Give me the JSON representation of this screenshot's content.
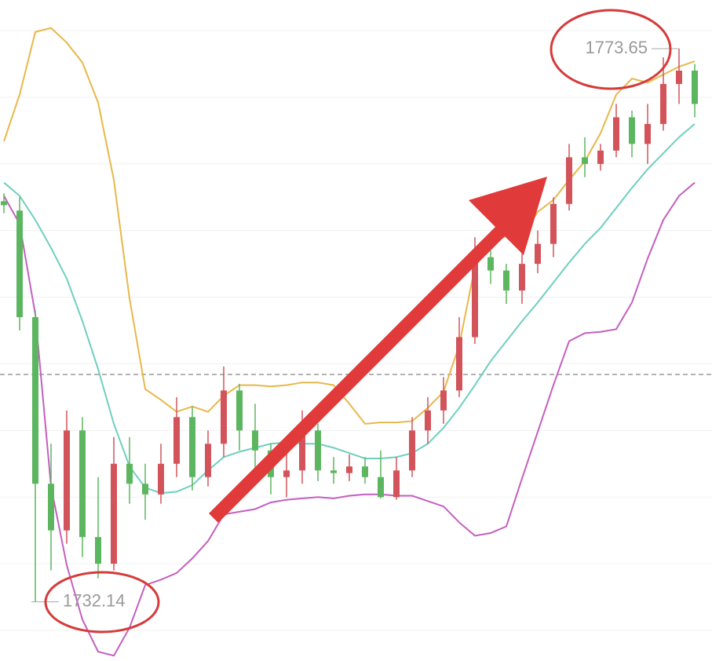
{
  "chart_data": {
    "type": "candlestick",
    "ylim": [
      1727.7,
      1777.3
    ],
    "gridlines": [
      1775,
      1770,
      1765,
      1760,
      1755,
      1750,
      1745,
      1740,
      1735,
      1730
    ],
    "reference_line": 1749.2,
    "up_color": "#d2545a",
    "down_color": "#5cb660",
    "open": [
      1762.2,
      1761.5,
      1753.5,
      1741,
      1737.5,
      1745,
      1737,
      1735,
      1742.5,
      1741,
      1740.2,
      1742.5,
      1746,
      1741.5,
      1744,
      1748,
      1745,
      1743.5,
      1741.5,
      1742,
      1745,
      1742,
      1741.8,
      1742.3,
      1741.5,
      1740,
      1742,
      1745,
      1746.5,
      1748,
      1752,
      1758,
      1757,
      1755.5,
      1757.5,
      1759,
      1762,
      1765.5,
      1765,
      1766,
      1768.5,
      1766.5,
      1768,
      1771,
      1772
    ],
    "high": [
      1762.8,
      1762.5,
      1754,
      1744,
      1746.5,
      1746,
      1741.5,
      1744.5,
      1744.5,
      1742.5,
      1744,
      1747.5,
      1746.8,
      1745,
      1749.8,
      1748.5,
      1747,
      1744,
      1744,
      1746.5,
      1745.5,
      1743,
      1743.2,
      1743,
      1743.5,
      1743,
      1746,
      1747.5,
      1749,
      1753.5,
      1759.5,
      1758.5,
      1757.5,
      1758.5,
      1760,
      1762.5,
      1766.5,
      1767,
      1766.5,
      1769.5,
      1769,
      1769.5,
      1773,
      1773.65,
      1772.5
    ],
    "low": [
      1761.3,
      1752.5,
      1732.14,
      1734.5,
      1736.5,
      1735.5,
      1733.9,
      1734.5,
      1739.5,
      1738.3,
      1739.5,
      1741.5,
      1740.5,
      1740.8,
      1743,
      1743.5,
      1741.5,
      1740.2,
      1740,
      1741,
      1741.2,
      1741,
      1741.2,
      1741,
      1739.9,
      1739.8,
      1741.5,
      1744,
      1745.5,
      1747.5,
      1751.5,
      1756,
      1754.5,
      1754.5,
      1756.8,
      1758,
      1761.5,
      1764,
      1764.5,
      1765.5,
      1765.5,
      1765,
      1767.5,
      1769.5,
      1768.5
    ],
    "close": [
      1761.9,
      1753.5,
      1741,
      1737.5,
      1745,
      1737,
      1735,
      1742.5,
      1741,
      1740.2,
      1742.5,
      1746,
      1741.5,
      1744,
      1748,
      1745,
      1743.5,
      1741.5,
      1742,
      1745,
      1742,
      1741.8,
      1742.3,
      1741.5,
      1740,
      1742,
      1745,
      1746.5,
      1748,
      1752,
      1758,
      1757,
      1755.5,
      1757.5,
      1759,
      1762,
      1765.5,
      1765,
      1766,
      1768.5,
      1766.5,
      1768,
      1771,
      1772,
      1769.5
    ],
    "bands": [
      {
        "color": "#e8b84a",
        "values": [
          1766.7,
          1770.2,
          1774.9,
          1775.2,
          1774.1,
          1772.6,
          1769.6,
          1763.8,
          1754.9,
          1748.1,
          1747.3,
          1746.4,
          1746.8,
          1746.4,
          1747.6,
          1748.4,
          1748.4,
          1748.3,
          1748.4,
          1748.6,
          1748.6,
          1748.4,
          1747.0,
          1745.5,
          1745.6,
          1745.6,
          1745.7,
          1746.7,
          1747.9,
          1751.4,
          1757.3,
          1759.0,
          1759.6,
          1759.6,
          1761.4,
          1762.3,
          1763.8,
          1765.2,
          1767.3,
          1770.2,
          1771.4,
          1771.1,
          1771.7,
          1772.3,
          1772.7
        ]
      },
      {
        "color": "#6fcfbf",
        "values": [
          1763.6,
          1762.6,
          1760.8,
          1758.7,
          1756.4,
          1753.2,
          1749.6,
          1745.5,
          1742.3,
          1740.7,
          1740.3,
          1740.4,
          1740.9,
          1742.0,
          1743.0,
          1743.4,
          1743.7,
          1744.0,
          1744.1,
          1744.0,
          1744.0,
          1743.7,
          1743.3,
          1742.9,
          1742.9,
          1743.0,
          1743.3,
          1744.0,
          1745.2,
          1746.7,
          1748.4,
          1750.2,
          1751.7,
          1753.2,
          1754.6,
          1756.1,
          1757.6,
          1759.0,
          1760.2,
          1761.7,
          1763.2,
          1764.6,
          1765.8,
          1767.0,
          1768.0
        ]
      },
      {
        "color": "#c45fc0",
        "values": [
          1762.6,
          1760.5,
          1753.7,
          1740.8,
          1734.9,
          1730.8,
          1728.4,
          1728.1,
          1730.2,
          1733.4,
          1733.8,
          1734.3,
          1735.4,
          1736.7,
          1738.7,
          1738.9,
          1739.1,
          1739.6,
          1739.8,
          1739.9,
          1740.0,
          1739.9,
          1740.1,
          1740.2,
          1740.2,
          1740.1,
          1740.1,
          1739.7,
          1739.3,
          1738.1,
          1737.1,
          1737.3,
          1737.8,
          1741.4,
          1744.9,
          1748.4,
          1751.7,
          1752.3,
          1752.4,
          1752.6,
          1754.6,
          1757.9,
          1760.8,
          1762.6,
          1763.6
        ]
      }
    ]
  }
}
